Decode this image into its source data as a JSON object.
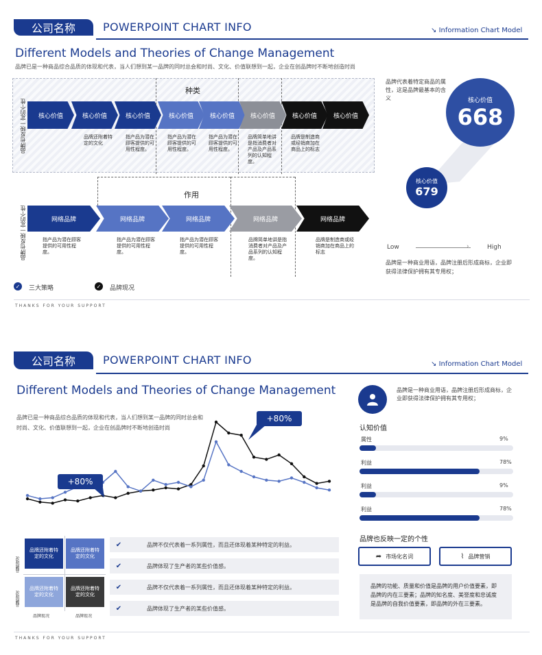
{
  "slide1": {
    "company": "公司名称",
    "header_title": "POWERPOINT CHART INFO",
    "header_right": "Information Chart Model",
    "title": "Different Models and Theories of Change Management",
    "subtitle": "品牌已是一种商品综合品质的体现和代表，当人们想到某一品牌的同时总会和时尚、文化、价值联想到一起，企业在创品牌时不断地创造时尚",
    "side_label_top": "品牌也反映一定的个性",
    "side_label_bottom": "品牌也反映一定的个性",
    "section_top": "种类",
    "section_bottom": "作用",
    "top_arrows": [
      {
        "label": "核心价值",
        "color": "#1a3a8f"
      },
      {
        "label": "核心价值",
        "color": "#1a3a8f"
      },
      {
        "label": "核心价值",
        "color": "#1a3a8f"
      },
      {
        "label": "核心价值",
        "color": "#5674c4"
      },
      {
        "label": "核心价值",
        "color": "#5674c4"
      },
      {
        "label": "核心价值",
        "color": "#8c8f97"
      },
      {
        "label": "核心价值",
        "color": "#111111"
      },
      {
        "label": "核心价值",
        "color": "#111111"
      }
    ],
    "top_descs": [
      "品牌还附着特定的文化",
      "指产品为潜在顾客提供的可用性程度。",
      "指产品为潜在顾客提供的可用性程度。",
      "指产品为潜在顾客提供的可用性程度。",
      "品牌简单地讲是指消费者对产品及产品系列的认知程度。",
      "品牌是制造商或经销商加在商品上的标志"
    ],
    "bottom_arrows": [
      {
        "label": "网络品牌",
        "color": "#1a3a8f"
      },
      {
        "label": "网络品牌",
        "color": "#5674c4"
      },
      {
        "label": "网络品牌",
        "color": "#5674c4"
      },
      {
        "label": "网络品牌",
        "color": "#9a9ca3"
      },
      {
        "label": "网络品牌",
        "color": "#111111"
      }
    ],
    "bottom_descs": [
      "指产品为潜在顾客提供的可用性程度。",
      "指产品为潜在顾客提供的可用性程度。",
      "指产品为潜在顾客提供的可用性程度。",
      "品牌简单地讲是指消费者对产品及产品系列的认知程度。",
      "品牌是制造商或经销商加在商品上的标志"
    ],
    "right_text_top": "品牌代表着特定商品的属性，这是品牌最基本的含义",
    "big_circle_label": "核心价值",
    "big_circle_value": "668",
    "small_circle_label": "核心价值",
    "small_circle_value": "679",
    "low": "Low",
    "high": "High",
    "right_text_bottom": "品牌是一种商业用语，品牌注册后形成商标，企业即获得法律保护拥有其专用权；",
    "legend_blue": "三大策略",
    "legend_black": "品牌现况",
    "thanks": "THANKS FOR YOUR SUPPORT",
    "colors": {
      "primary": "#1a3a8f",
      "secondary": "#5674c4",
      "gray": "#8c8f97",
      "dark": "#111111"
    }
  },
  "slide2": {
    "company": "公司名称",
    "header_title": "POWERPOINT CHART INFO",
    "header_right": "Information Chart Model",
    "title": "Different Models and Theories of Change Management",
    "subtitle": "品牌已是一种商品综合品质的体现和代表，当人们想到某一品牌的同时总会和时尚、文化、价值联想到一起，企业在创品牌时不断地创造时尚",
    "callout_left": "+80%",
    "callout_right": "+80%",
    "chart_data": {
      "type": "line",
      "series": [
        {
          "values": [
            20,
            17,
            16,
            19,
            18,
            21,
            23,
            21,
            25,
            27,
            28,
            30,
            29,
            33,
            50,
            90,
            80,
            78,
            58,
            56,
            60,
            52,
            40,
            34,
            36
          ]
        },
        {
          "values": [
            23,
            20,
            21,
            26,
            31,
            36,
            35,
            45,
            31,
            27,
            37,
            33,
            35,
            31,
            37,
            72,
            51,
            45,
            40,
            37,
            36,
            39,
            35,
            30,
            28
          ]
        }
      ],
      "colors": [
        "#111111",
        "#5674c4"
      ]
    },
    "tiles": [
      {
        "label": "品牌还附着特定的文化",
        "color": "#1a3a8f"
      },
      {
        "label": "品牌还附着特定的文化",
        "color": "#5674c4"
      },
      {
        "label": "品牌还附着特定的文化",
        "color": "#8ea6db"
      },
      {
        "label": "品牌还附着特定的文化",
        "color": "#3a3a3a"
      }
    ],
    "tile_vlabel_top": "品牌现况",
    "tile_vlabel_bottom": "品牌现况",
    "tile_hlabel_left": "品牌现况",
    "tile_hlabel_right": "品牌现况",
    "list_items": [
      "品牌不仅代表着一系列属性，而且还体现着某种特定的利益。",
      "品牌体现了生产者的某些价值感。",
      "品牌不仅代表着一系列属性，而且还体现着某种特定的利益。",
      "品牌体现了生产者的某些价值感。"
    ],
    "profile_text": "品牌是一种商业用语，品牌注册后形成商标，企业即获得法律保护拥有其专用权；",
    "recognition_title": "认知价值",
    "bars": [
      {
        "label": "属性",
        "value": "9%",
        "fraction": 0.09
      },
      {
        "label": "利益",
        "value": "78%",
        "fraction": 0.78
      },
      {
        "label": "利益",
        "value": "9%",
        "fraction": 0.09
      },
      {
        "label": "利益",
        "value": "78%",
        "fraction": 0.78
      }
    ],
    "personality_title": "品牌也反映一定的个性",
    "btn_left": "市场化名词",
    "btn_right": "品牌营销",
    "note": "品牌的功能、质量和价值是品牌的用户价值要素，即品牌的内在三要素；品牌的知名度、美誉度和忠诚度是品牌的自我价值要素，即品牌的外在三要素。",
    "thanks": "THANKS FOR YOUR SUPPORT"
  }
}
